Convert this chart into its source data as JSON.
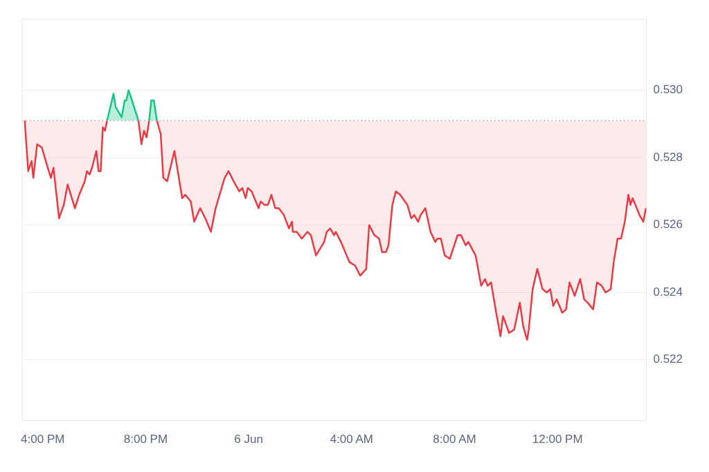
{
  "chart_data": {
    "type": "line",
    "xlim": [
      "--06-05T15:12",
      "--06-06T15:27"
    ],
    "xticks": [
      {
        "value": "--06-05T16:00",
        "label": "4:00 PM"
      },
      {
        "value": "--06-05T20:00",
        "label": "8:00 PM"
      },
      {
        "value": "--06-06T00:00",
        "label": "6 Jun"
      },
      {
        "value": "--06-06T04:00",
        "label": "4:00 AM"
      },
      {
        "value": "--06-06T08:00",
        "label": "8:00 AM"
      },
      {
        "value": "--06-06T12:00",
        "label": "12:00 PM"
      }
    ],
    "ylim": [
      0.5202,
      0.5321
    ],
    "yticks": [
      {
        "value": 0.522,
        "label": "0.522"
      },
      {
        "value": 0.524,
        "label": "0.524"
      },
      {
        "value": 0.526,
        "label": "0.526"
      },
      {
        "value": 0.528,
        "label": "0.528"
      },
      {
        "value": 0.53,
        "label": "0.530"
      }
    ],
    "grid": "y",
    "legend": false,
    "marker": "none",
    "line_style": "solid",
    "ref_lines": [
      {
        "axis": "y",
        "value": 0.5291,
        "color": "#a0a4ab",
        "line_style": "dotted"
      }
    ],
    "series": [
      {
        "color": "#ea3943",
        "x": [
          "--06-05T15:18",
          "--06-05T15:26",
          "--06-05T15:34",
          "--06-05T15:38",
          "--06-05T15:47",
          "--06-05T15:58",
          "--06-05T16:07",
          "--06-05T16:19",
          "--06-05T16:25",
          "--06-05T16:38",
          "--06-05T16:49",
          "--06-05T16:58",
          "--06-05T17:15",
          "--06-05T17:25",
          "--06-05T17:38",
          "--06-05T17:43",
          "--06-05T17:49",
          "--06-05T17:55",
          "--06-05T18:05",
          "--06-05T18:10",
          "--06-05T18:15",
          "--06-05T18:20",
          "--06-05T18:25",
          "--06-05T18:30",
          "--06-05T18:45",
          "--06-05T18:50",
          "--06-05T19:04",
          "--06-05T19:11",
          "--06-05T19:15",
          "--06-05T19:20",
          "--06-05T19:28",
          "--06-05T19:43",
          "--06-05T19:50",
          "--06-05T19:56",
          "--06-05T20:02",
          "--06-05T20:08",
          "--06-05T20:13",
          "--06-05T20:19",
          "--06-05T20:26",
          "--06-05T20:35",
          "--06-05T20:41",
          "--06-05T20:50",
          "--06-05T21:07",
          "--06-05T21:25",
          "--06-05T21:32",
          "--06-05T21:45",
          "--06-05T21:53",
          "--06-05T22:07",
          "--06-05T22:19",
          "--06-05T22:32",
          "--06-05T22:43",
          "--06-05T23:04",
          "--06-05T23:13",
          "--06-05T23:25",
          "--06-05T23:38",
          "--06-05T23:45",
          "--06-05T23:53",
          "--06-05T23:58",
          "--06-06T00:07",
          "--06-06T00:23",
          "--06-06T00:28",
          "--06-06T00:37",
          "--06-06T00:45",
          "--06-06T00:53",
          "--06-06T01:02",
          "--06-06T01:10",
          "--06-06T01:22",
          "--06-06T01:34",
          "--06-06T01:41",
          "--06-06T01:43",
          "--06-06T01:52",
          "--06-06T02:04",
          "--06-06T02:17",
          "--06-06T02:25",
          "--06-06T02:37",
          "--06-06T02:56",
          "--06-06T03:02",
          "--06-06T03:10",
          "--06-06T03:19",
          "--06-06T03:23",
          "--06-06T03:35",
          "--06-06T03:55",
          "--06-06T04:08",
          "--06-06T04:20",
          "--06-06T04:34",
          "--06-06T04:41",
          "--06-06T04:53",
          "--06-06T05:04",
          "--06-06T05:11",
          "--06-06T05:20",
          "--06-06T05:26",
          "--06-06T05:35",
          "--06-06T05:43",
          "--06-06T05:53",
          "--06-06T06:10",
          "--06-06T06:19",
          "--06-06T06:26",
          "--06-06T06:35",
          "--06-06T06:41",
          "--06-06T06:52",
          "--06-06T07:04",
          "--06-06T07:15",
          "--06-06T07:20",
          "--06-06T07:28",
          "--06-06T07:37",
          "--06-06T07:49",
          "--06-06T08:07",
          "--06-06T08:15",
          "--06-06T08:26",
          "--06-06T08:32",
          "--06-06T08:49",
          "--06-06T09:02",
          "--06-06T09:11",
          "--06-06T09:17",
          "--06-06T09:25",
          "--06-06T09:37",
          "--06-06T09:47",
          "--06-06T09:53",
          "--06-06T10:07",
          "--06-06T10:19",
          "--06-06T10:32",
          "--06-06T10:40",
          "--06-06T10:49",
          "--06-06T10:53",
          "--06-06T11:02",
          "--06-06T11:13",
          "--06-06T11:25",
          "--06-06T11:35",
          "--06-06T11:43",
          "--06-06T11:50",
          "--06-06T11:58",
          "--06-06T12:11",
          "--06-06T12:20",
          "--06-06T12:28",
          "--06-06T12:40",
          "--06-06T12:53",
          "--06-06T13:02",
          "--06-06T13:10",
          "--06-06T13:23",
          "--06-06T13:32",
          "--06-06T13:43",
          "--06-06T13:52",
          "--06-06T14:04",
          "--06-06T14:11",
          "--06-06T14:20",
          "--06-06T14:28",
          "--06-06T14:37",
          "--06-06T14:45",
          "--06-06T14:50",
          "--06-06T14:55",
          "--06-06T15:11",
          "--06-06T15:20",
          "--06-06T15:26"
        ],
        "values": [
          0.5291,
          0.5276,
          0.5279,
          0.5274,
          0.5284,
          0.5283,
          0.5279,
          0.5274,
          0.5277,
          0.5262,
          0.5266,
          0.5272,
          0.5265,
          0.5269,
          0.5273,
          0.5276,
          0.5275,
          0.5277,
          0.5282,
          0.5276,
          0.5276,
          0.5289,
          0.5288,
          0.5291,
          null,
          null,
          null,
          null,
          null,
          null,
          null,
          0.5291,
          0.5284,
          0.5288,
          0.5286,
          0.5291,
          null,
          null,
          0.5291,
          0.5287,
          0.5274,
          0.5273,
          0.5282,
          0.5268,
          0.5269,
          0.5267,
          0.5261,
          0.5265,
          0.5262,
          0.5258,
          0.5265,
          0.5274,
          0.5276,
          0.5273,
          0.527,
          0.5271,
          0.5268,
          0.5271,
          0.527,
          0.5265,
          0.5267,
          0.5266,
          0.5266,
          0.5269,
          0.5265,
          0.5265,
          0.5263,
          0.5259,
          0.5261,
          0.5258,
          0.5258,
          0.5256,
          0.5258,
          0.5257,
          0.5251,
          0.5255,
          0.5258,
          0.5259,
          0.5257,
          0.5258,
          0.5255,
          0.5249,
          0.5248,
          0.5245,
          0.5247,
          0.526,
          0.5257,
          0.5256,
          0.5252,
          0.5252,
          0.5254,
          0.5266,
          0.527,
          0.5269,
          0.5266,
          0.5262,
          0.5263,
          0.5261,
          0.5263,
          0.5265,
          0.5258,
          0.5255,
          0.5256,
          0.5256,
          0.5251,
          0.525,
          0.5257,
          0.5257,
          0.5254,
          0.5255,
          0.5251,
          0.5242,
          0.5244,
          0.5242,
          0.5243,
          0.5234,
          0.5227,
          0.5233,
          0.5228,
          0.5229,
          0.5237,
          0.523,
          0.5226,
          0.5229,
          0.5241,
          0.5247,
          0.5241,
          0.524,
          0.5241,
          0.5236,
          0.5238,
          0.5234,
          0.5235,
          0.5243,
          0.5239,
          0.5244,
          0.5238,
          0.5237,
          0.5235,
          0.5243,
          0.5242,
          0.524,
          0.5241,
          0.5249,
          0.5256,
          0.5256,
          0.5261,
          0.5269,
          0.5266,
          0.5268,
          0.5263,
          0.5261,
          0.5265
        ]
      },
      {
        "color": "#16c784",
        "x": [
          "--06-05T18:30",
          "--06-05T18:45",
          "--06-05T18:50",
          "--06-05T19:04",
          "--06-05T19:11",
          "--06-05T19:15",
          "--06-05T19:20",
          "--06-05T19:28",
          "--06-05T19:43",
          "--06-05T19:54",
          "--06-05T20:08",
          "--06-05T20:13",
          "--06-05T20:19",
          "--06-05T20:26"
        ],
        "values": [
          0.5291,
          0.5299,
          0.5295,
          0.5292,
          0.5297,
          0.5297,
          0.53,
          0.5297,
          0.5291,
          null,
          0.5291,
          0.5297,
          0.5297,
          0.5291
        ]
      }
    ]
  }
}
